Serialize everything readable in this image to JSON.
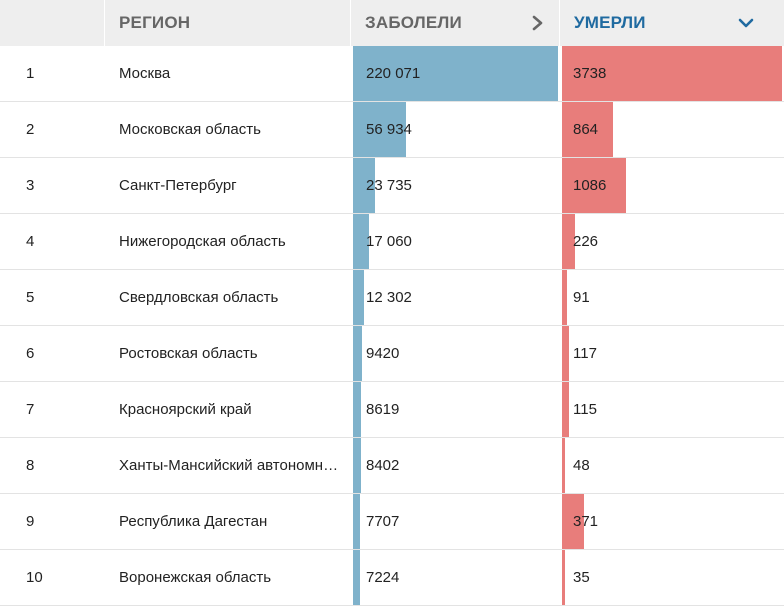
{
  "colors": {
    "header_bg": "#eeeeee",
    "header_text": "#666666",
    "active_header_text": "#1f6aa0",
    "cases_bar": "#7fb2cb",
    "deaths_bar": "#e87d7b"
  },
  "header": {
    "region": "РЕГИОН",
    "cases": "ЗАБОЛЕЛИ",
    "deaths": "УМЕРЛИ",
    "cases_icon": "chevron-right-icon",
    "deaths_icon": "chevron-down-icon",
    "sorted_by": "deaths"
  },
  "rows": [
    {
      "idx": "1",
      "region": "Москва",
      "cases": "220 071",
      "deaths": "3738",
      "cases_value": 220071,
      "deaths_value": 3738
    },
    {
      "idx": "2",
      "region": "Московская область",
      "cases": "56 934",
      "deaths": "864",
      "cases_value": 56934,
      "deaths_value": 864
    },
    {
      "idx": "3",
      "region": "Санкт-Петербург",
      "cases": "23 735",
      "deaths": "1086",
      "cases_value": 23735,
      "deaths_value": 1086
    },
    {
      "idx": "4",
      "region": "Нижегородская область",
      "cases": "17 060",
      "deaths": "226",
      "cases_value": 17060,
      "deaths_value": 226
    },
    {
      "idx": "5",
      "region": "Свердловская область",
      "cases": "12 302",
      "deaths": "91",
      "cases_value": 12302,
      "deaths_value": 91
    },
    {
      "idx": "6",
      "region": "Ростовская область",
      "cases": "9420",
      "deaths": "117",
      "cases_value": 9420,
      "deaths_value": 117
    },
    {
      "idx": "7",
      "region": "Красноярский край",
      "cases": "8619",
      "deaths": "115",
      "cases_value": 8619,
      "deaths_value": 115
    },
    {
      "idx": "8",
      "region": "Ханты-Мансийский автономный округ — Югра",
      "cases": "8402",
      "deaths": "48",
      "cases_value": 8402,
      "deaths_value": 48
    },
    {
      "idx": "9",
      "region": "Республика Дагестан",
      "cases": "7707",
      "deaths": "371",
      "cases_value": 7707,
      "deaths_value": 371
    },
    {
      "idx": "10",
      "region": "Воронежская область",
      "cases": "7224",
      "deaths": "35",
      "cases_value": 7224,
      "deaths_value": 35
    }
  ]
}
